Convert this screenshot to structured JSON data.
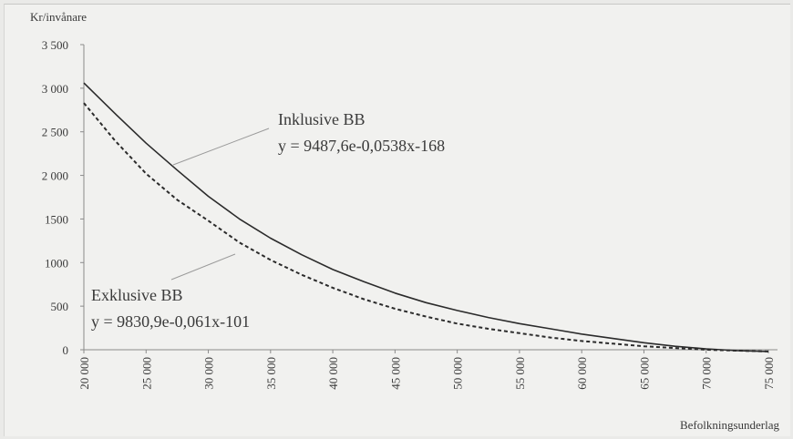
{
  "chart_data": {
    "type": "line",
    "ylabel": "Kr/invånare",
    "xlabel": "Befolkningsunderlag",
    "xlim": [
      20000,
      75000
    ],
    "ylim": [
      0,
      3500
    ],
    "grid": false,
    "y_ticks": [
      {
        "value": 0,
        "label": "0"
      },
      {
        "value": 500,
        "label": "500"
      },
      {
        "value": 1000,
        "label": "1000"
      },
      {
        "value": 1500,
        "label": "1500"
      },
      {
        "value": 2000,
        "label": "2 000"
      },
      {
        "value": 2500,
        "label": "2 500"
      },
      {
        "value": 3000,
        "label": "3 000"
      },
      {
        "value": 3500,
        "label": "3 500"
      }
    ],
    "x_ticks": [
      {
        "value": 20000,
        "label": "20 000"
      },
      {
        "value": 25000,
        "label": "25 000"
      },
      {
        "value": 30000,
        "label": "30 000"
      },
      {
        "value": 35000,
        "label": "35 000"
      },
      {
        "value": 40000,
        "label": "40 000"
      },
      {
        "value": 45000,
        "label": "45 000"
      },
      {
        "value": 50000,
        "label": "50 000"
      },
      {
        "value": 55000,
        "label": "55 000"
      },
      {
        "value": 60000,
        "label": "60 000"
      },
      {
        "value": 65000,
        "label": "65 000"
      },
      {
        "value": 70000,
        "label": "70 000"
      },
      {
        "value": 75000,
        "label": "75 000"
      }
    ],
    "series": [
      {
        "name": "Inklusive BB",
        "style": "solid",
        "color": "#2b2b2b",
        "x": [
          20000,
          22500,
          25000,
          27500,
          30000,
          32500,
          35000,
          37500,
          40000,
          42500,
          45000,
          47500,
          50000,
          52500,
          55000,
          57500,
          60000,
          62500,
          65000,
          67500,
          70000,
          72500,
          75000
        ],
        "y": [
          3060,
          2710,
          2370,
          2060,
          1760,
          1500,
          1280,
          1090,
          920,
          780,
          650,
          540,
          450,
          370,
          300,
          240,
          180,
          130,
          80,
          40,
          10,
          -10,
          -20
        ]
      },
      {
        "name": "Exklusive BB",
        "style": "dashed",
        "color": "#2b2b2b",
        "x": [
          20000,
          22500,
          25000,
          27500,
          30000,
          32500,
          35000,
          37500,
          40000,
          42500,
          45000,
          47500,
          50000,
          52500,
          55000,
          57500,
          60000,
          62500,
          65000,
          67500,
          70000,
          72500,
          75000
        ],
        "y": [
          2830,
          2400,
          2020,
          1720,
          1480,
          1230,
          1030,
          860,
          710,
          580,
          470,
          380,
          300,
          240,
          190,
          140,
          100,
          70,
          40,
          20,
          0,
          -10,
          -20
        ]
      }
    ],
    "annotations": [
      {
        "series": "Inklusive BB",
        "name": "Inklusive BB",
        "equation": "y = 9487,6e-0,0538x-168"
      },
      {
        "series": "Exklusive BB",
        "name": "Exklusive BB",
        "equation": "y = 9830,9e-0,061x-101"
      }
    ]
  }
}
